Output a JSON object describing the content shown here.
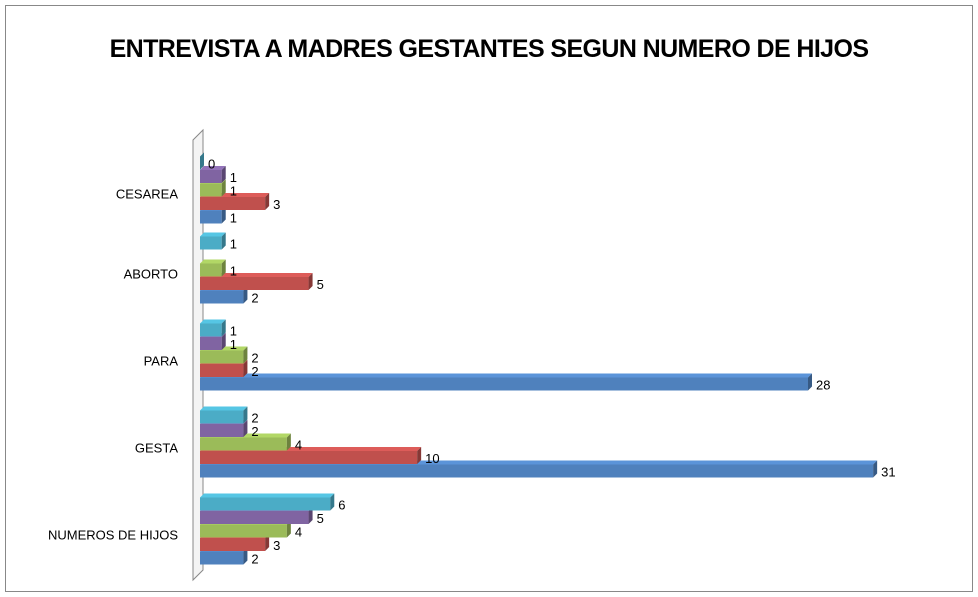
{
  "chart_data": {
    "type": "bar",
    "orientation": "horizontal",
    "title": "ENTREVISTA A MADRES GESTANTES SEGUN NUMERO DE HIJOS",
    "categories": [
      "NUMEROS DE HIJOS",
      "GESTA",
      "PARA",
      "ABORTO",
      "CESAREA"
    ],
    "series": [
      {
        "color": "#4f81bd",
        "values": [
          2,
          31,
          28,
          2,
          1
        ]
      },
      {
        "color": "#c0504d",
        "values": [
          3,
          10,
          2,
          5,
          3
        ]
      },
      {
        "color": "#9bbb59",
        "values": [
          4,
          4,
          2,
          1,
          1
        ]
      },
      {
        "color": "#8064a2",
        "values": [
          5,
          2,
          1,
          null,
          1
        ]
      },
      {
        "color": "#4bacc6",
        "values": [
          6,
          2,
          1,
          1,
          0
        ]
      }
    ],
    "xlim": [
      0,
      35
    ]
  }
}
